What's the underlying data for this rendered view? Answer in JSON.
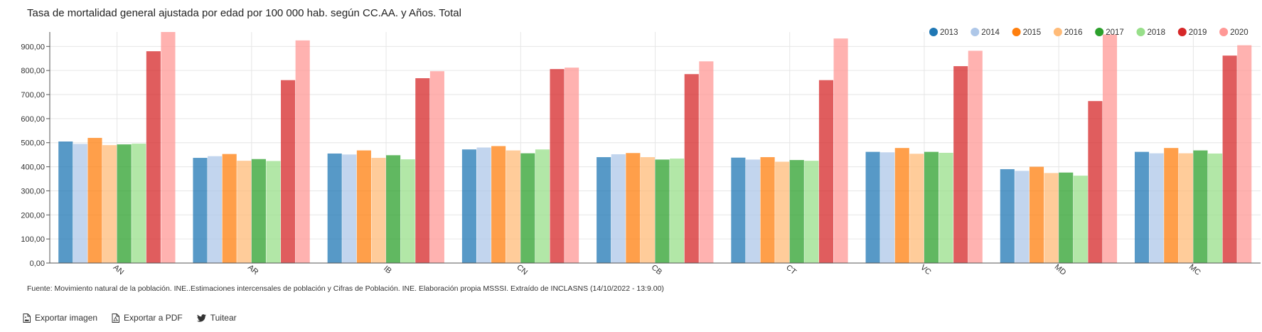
{
  "title": "Tasa de mortalidad general ajustada por edad por 100 000 hab. según CC.AA. y Años. Total",
  "source": "Fuente: Movimiento natural de la población. INE..Estimaciones intercensales de población y Cifras de Población. INE. Elaboración propia MSSSI. Extraído de INCLASNS (14/10/2022 - 13:9.00)",
  "actions": {
    "export_image": "Exportar imagen",
    "export_pdf": "Exportar a PDF",
    "tweet": "Tuitear",
    "export_image_icon": "image-file-icon",
    "export_pdf_icon": "pdf-file-icon",
    "tweet_icon": "twitter-bird-icon"
  },
  "chart_data": {
    "type": "bar",
    "title": "Tasa de mortalidad general ajustada por edad por 100 000 hab. según CC.AA. y Años. Total",
    "xlabel": "",
    "ylabel": "",
    "ylim": [
      0,
      960
    ],
    "yticks": [
      "0,00",
      "100,00",
      "200,00",
      "300,00",
      "400,00",
      "500,00",
      "600,00",
      "700,00",
      "800,00",
      "900,00"
    ],
    "grid": true,
    "legend_position": "top-right",
    "categories": [
      "AN",
      "AR",
      "IB",
      "CN",
      "CB",
      "CT",
      "VC",
      "MD",
      "MC"
    ],
    "series": [
      {
        "name": "2013",
        "color": "#1f77b4",
        "values": [
          505,
          437,
          455,
          472,
          440,
          438,
          462,
          390,
          462
        ]
      },
      {
        "name": "2014",
        "color": "#aec7e8",
        "values": [
          495,
          444,
          451,
          480,
          452,
          430,
          460,
          383,
          456
        ]
      },
      {
        "name": "2015",
        "color": "#ff7f0e",
        "values": [
          520,
          453,
          468,
          486,
          457,
          440,
          478,
          400,
          478
        ]
      },
      {
        "name": "2016",
        "color": "#ffbb78",
        "values": [
          490,
          425,
          437,
          468,
          440,
          421,
          454,
          374,
          456
        ]
      },
      {
        "name": "2017",
        "color": "#2ca02c",
        "values": [
          493,
          432,
          448,
          456,
          430,
          428,
          462,
          376,
          468
        ]
      },
      {
        "name": "2018",
        "color": "#98df8a",
        "values": [
          496,
          424,
          431,
          472,
          434,
          425,
          458,
          363,
          455
        ]
      },
      {
        "name": "2019",
        "color": "#d62728",
        "values": [
          880,
          760,
          768,
          806,
          785,
          760,
          818,
          673,
          862
        ]
      },
      {
        "name": "2020",
        "color": "#ff9896",
        "values": [
          960,
          925,
          797,
          812,
          838,
          933,
          882,
          950,
          905
        ]
      }
    ]
  }
}
